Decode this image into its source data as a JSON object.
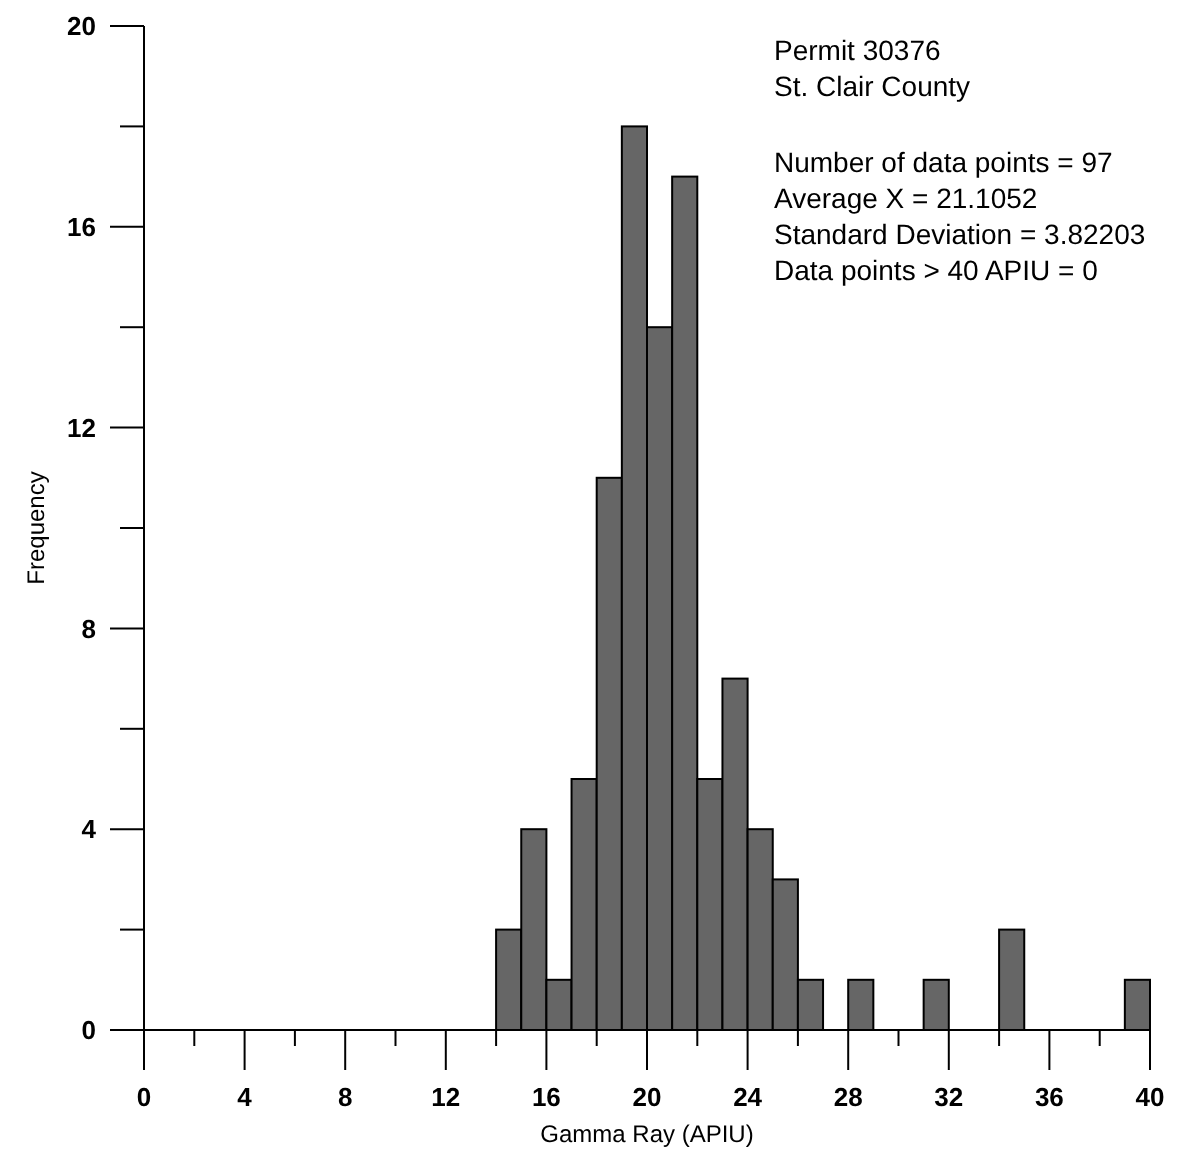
{
  "chart_data": {
    "type": "histogram",
    "xlabel": "Gamma Ray (APIU)",
    "ylabel": "Frequency",
    "bins": [
      0,
      1,
      2,
      3,
      4,
      5,
      6,
      7,
      8,
      9,
      10,
      11,
      12,
      13,
      14,
      15,
      16,
      17,
      18,
      19,
      20,
      21,
      22,
      23,
      24,
      25,
      26,
      27,
      28,
      29,
      30,
      31,
      32,
      33,
      34,
      35,
      36,
      37,
      38,
      39,
      40
    ],
    "values": [
      0,
      0,
      0,
      0,
      0,
      0,
      0,
      0,
      0,
      0,
      0,
      0,
      0,
      0,
      2,
      4,
      1,
      5,
      11,
      18,
      14,
      17,
      5,
      7,
      4,
      3,
      1,
      0,
      1,
      0,
      0,
      1,
      0,
      0,
      2,
      0,
      0,
      0,
      0,
      1
    ],
    "color": "#666666",
    "xlim": [
      0,
      40
    ],
    "ylim": [
      0,
      20
    ],
    "xticks": [
      0,
      {
        "value": 2,
        "label": null
      },
      4,
      {
        "value": 6,
        "label": null
      },
      8,
      {
        "value": 10,
        "label": null
      },
      12,
      {
        "value": 14,
        "label": null
      },
      16,
      {
        "value": 18,
        "label": null
      },
      20,
      {
        "value": 22,
        "label": null
      },
      24,
      {
        "value": 26,
        "label": null
      },
      28,
      {
        "value": 30,
        "label": null
      },
      32,
      {
        "value": 34,
        "label": null
      },
      36,
      {
        "value": 38,
        "label": null
      },
      40
    ],
    "yticks": [
      0,
      {
        "value": 2,
        "label": null
      },
      4,
      {
        "value": 6,
        "label": null
      },
      8,
      {
        "value": 10,
        "label": null
      },
      12,
      {
        "value": 14,
        "label": null
      },
      16,
      {
        "value": 18,
        "label": null
      },
      20
    ],
    "grid": false,
    "annotations": [
      "Permit 30376",
      "St. Clair County",
      "Number of data points = 97",
      "Average X = 21.1052",
      "Standard Deviation = 3.82203",
      "Data points > 40 APIU = 0"
    ]
  }
}
